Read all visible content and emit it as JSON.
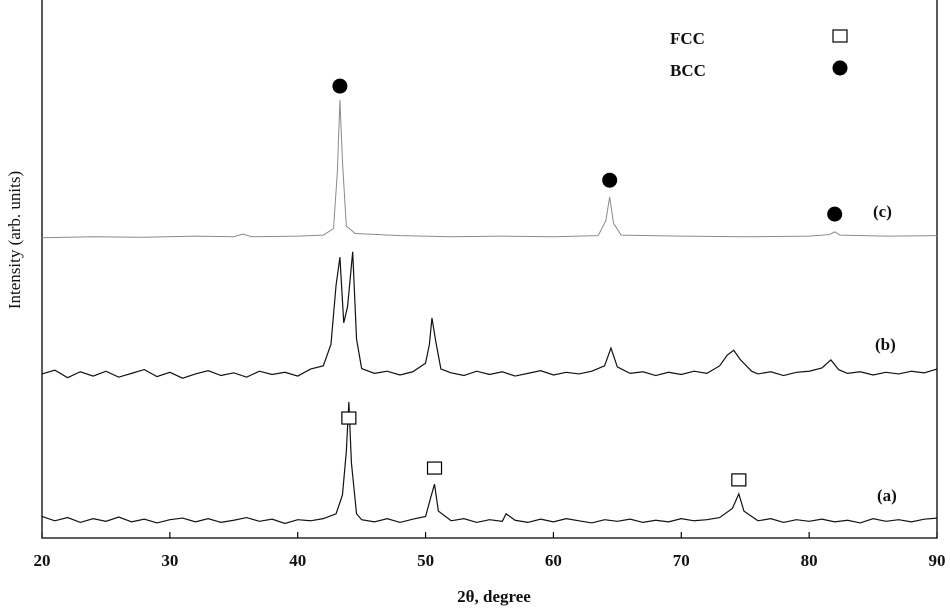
{
  "chart_data": {
    "type": "line",
    "xlabel": "2θ, degree",
    "ylabel": "Intensity (arb. units)",
    "xlim": [
      20,
      90
    ],
    "xticks": [
      20,
      30,
      40,
      50,
      60,
      70,
      80,
      90
    ],
    "ylim": [
      0,
      100
    ],
    "series": [
      {
        "name": "(a)",
        "color": "#111111",
        "x": [
          20,
          21,
          22,
          23,
          24,
          25,
          26,
          27,
          28,
          29,
          30,
          31,
          32,
          33,
          34,
          35,
          36,
          37,
          38,
          39,
          40,
          41,
          42,
          43,
          43.5,
          43.8,
          44.0,
          44.2,
          44.6,
          45,
          46,
          47,
          48,
          49,
          50,
          50.4,
          50.7,
          51.0,
          52,
          53,
          54,
          55,
          56,
          56.3,
          57,
          58,
          59,
          60,
          61,
          62,
          63,
          64,
          65,
          66,
          67,
          68,
          69,
          70,
          71,
          72,
          73,
          74,
          74.5,
          74.9,
          76,
          77,
          78,
          79,
          80,
          81,
          82,
          83,
          84,
          85,
          86,
          87,
          88,
          89,
          90
        ],
        "values": [
          4.0,
          3.2,
          3.8,
          2.9,
          3.6,
          3.1,
          3.9,
          3.0,
          3.5,
          2.8,
          3.4,
          3.7,
          3.0,
          3.6,
          2.9,
          3.3,
          3.8,
          3.1,
          3.5,
          2.7,
          3.4,
          3.2,
          3.6,
          4.5,
          8,
          16,
          25.3,
          14,
          4.5,
          3.4,
          3.0,
          3.6,
          2.9,
          3.5,
          4.0,
          7.5,
          10.0,
          5,
          3.2,
          3.6,
          2.9,
          3.4,
          3.1,
          4.5,
          3.3,
          2.9,
          3.5,
          3.0,
          3.6,
          3.2,
          2.8,
          3.4,
          3.1,
          3.5,
          2.9,
          3.3,
          3.0,
          3.6,
          3.2,
          3.4,
          3.8,
          5.5,
          8.2,
          5,
          3.2,
          3.6,
          2.9,
          3.4,
          3.1,
          3.5,
          3.0,
          3.3,
          2.8,
          3.6,
          3.1,
          3.4,
          3.0,
          3.5,
          3.7
        ]
      },
      {
        "name": "(b)",
        "color": "#111111",
        "x": [
          20,
          21,
          22,
          23,
          24,
          25,
          26,
          27,
          28,
          29,
          30,
          31,
          32,
          33,
          34,
          35,
          36,
          37,
          38,
          39,
          40,
          41,
          42,
          42.6,
          43.0,
          43.3,
          43.6,
          43.9,
          44.3,
          44.6,
          45,
          46,
          47,
          48,
          49,
          50,
          50.3,
          50.5,
          50.8,
          51.2,
          52,
          53,
          54,
          55,
          56,
          57,
          58,
          59,
          60,
          61,
          62,
          63,
          64,
          64.5,
          65,
          66,
          67,
          68,
          69,
          70,
          71,
          72,
          73,
          73.6,
          74.1,
          74.6,
          75.5,
          76,
          77,
          78,
          79,
          80,
          81,
          81.7,
          82.3,
          83,
          84,
          85,
          86,
          87,
          88,
          89,
          90
        ],
        "values": [
          30.5,
          31.2,
          29.8,
          30.9,
          30.1,
          31.0,
          29.9,
          30.6,
          31.3,
          30.0,
          30.8,
          29.7,
          30.5,
          31.1,
          30.2,
          30.7,
          29.9,
          31.0,
          30.4,
          30.8,
          30.1,
          31.4,
          32.0,
          36,
          47,
          52.2,
          40,
          43,
          53.2,
          37,
          31.5,
          30.6,
          31.0,
          30.3,
          30.9,
          32.5,
          36,
          40.9,
          36.5,
          31.4,
          30.7,
          30.2,
          31.0,
          30.4,
          30.9,
          30.1,
          30.6,
          31.1,
          30.3,
          30.8,
          30.5,
          31.0,
          32.0,
          35.3,
          31.8,
          30.6,
          30.9,
          30.2,
          30.8,
          30.4,
          31.0,
          30.6,
          32.0,
          34,
          34.9,
          33.2,
          31.0,
          30.5,
          30.9,
          30.2,
          30.8,
          31.0,
          31.6,
          33.1,
          31.3,
          30.6,
          30.9,
          30.3,
          30.8,
          30.5,
          31.0,
          30.7,
          31.4
        ]
      },
      {
        "name": "(c)",
        "color": "#8a8a8a",
        "x": [
          20,
          24,
          28,
          32,
          35,
          35.7,
          36.4,
          40,
          42,
          42.8,
          43.1,
          43.3,
          43.5,
          43.8,
          44.5,
          48,
          52,
          56,
          60,
          63.5,
          64.1,
          64.4,
          64.7,
          65.3,
          70,
          75,
          80,
          81.6,
          82,
          82.4,
          86,
          90
        ],
        "values": [
          55.8,
          56.0,
          55.9,
          56.1,
          56.0,
          56.5,
          56.0,
          56.1,
          56.3,
          57.5,
          68,
          81.4,
          70,
          58,
          56.6,
          56.2,
          56.0,
          56.1,
          56.0,
          56.2,
          59,
          63.4,
          58.5,
          56.3,
          56.1,
          56.0,
          56.1,
          56.4,
          56.9,
          56.3,
          56.1,
          56.2
        ]
      }
    ],
    "markers": [
      {
        "name": "FCC",
        "shape": "square",
        "x": [
          44.0,
          50.7,
          74.5
        ],
        "values": [
          22.3,
          13.0,
          10.8
        ]
      },
      {
        "name": "BCC",
        "shape": "circle",
        "x": [
          43.3,
          64.4,
          82.0
        ],
        "values": [
          84.0,
          66.5,
          60.2
        ]
      }
    ]
  }
}
